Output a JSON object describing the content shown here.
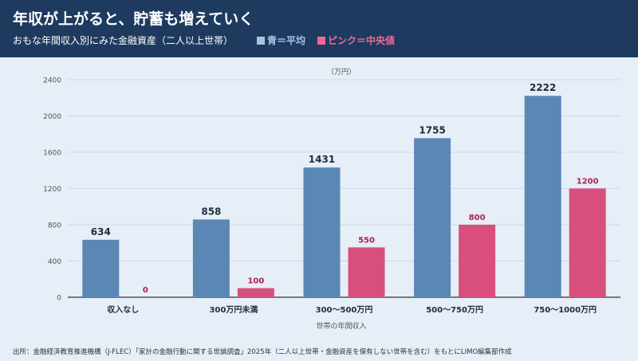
{
  "header": {
    "title": "年収が上がると、貯蓄も増えていく",
    "subtitle": "おもな年間収入別にみた金融資産（二人以上世帯）",
    "legend_avg": "青＝平均",
    "legend_median": "ピンク＝中央値"
  },
  "colors": {
    "header_bg": "#1e3a5f",
    "avg": "#5b87b5",
    "median": "#d94f7c"
  },
  "footer": {
    "source": "出所：金融経済教育推進機構（J-FLEC）「家計の金融行動に関する世論調査」2025年（二人以上世帯・金融資産を保有しない世帯を含む）をもとにLIMO編集部作成"
  },
  "chart_data": {
    "type": "bar",
    "unit_label": "（万円）",
    "xlabel": "世帯の年間収入",
    "ylabel": "",
    "ylim": [
      0,
      2400
    ],
    "yticks": [
      0,
      400,
      800,
      1200,
      1600,
      2000,
      2400
    ],
    "grid": true,
    "categories": [
      "収入なし",
      "300万円未満",
      "300〜500万円",
      "500〜750万円",
      "750〜1000万円"
    ],
    "series": [
      {
        "name": "平均",
        "color": "#5b87b5",
        "values": [
          634,
          858,
          1431,
          1755,
          2222
        ]
      },
      {
        "name": "中央値",
        "color": "#d94f7c",
        "values": [
          0,
          100,
          550,
          800,
          1200
        ]
      }
    ]
  }
}
